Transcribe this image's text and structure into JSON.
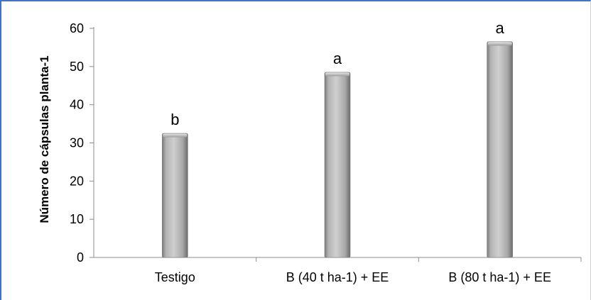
{
  "chart_data": {
    "type": "bar",
    "title": "",
    "xlabel": "",
    "ylabel": "Número de cápsulas planta-1",
    "categories": [
      "Testigo",
      "B (40 t ha-1) + EE",
      "B (80 t ha-1) + EE"
    ],
    "values": [
      32.5,
      48.5,
      56.5
    ],
    "data_labels": [
      "b",
      "a",
      "a"
    ],
    "ylim": [
      0,
      60
    ],
    "yticks": [
      0,
      10,
      20,
      30,
      40,
      50,
      60
    ],
    "grid": false,
    "legend": "none",
    "colors": {
      "bar_light": "#d6d6d6",
      "bar_mid": "#a9a9a9",
      "bar_dark": "#6e6e6e",
      "axis": "#8c8c8c",
      "frame": "#4472c4"
    }
  }
}
